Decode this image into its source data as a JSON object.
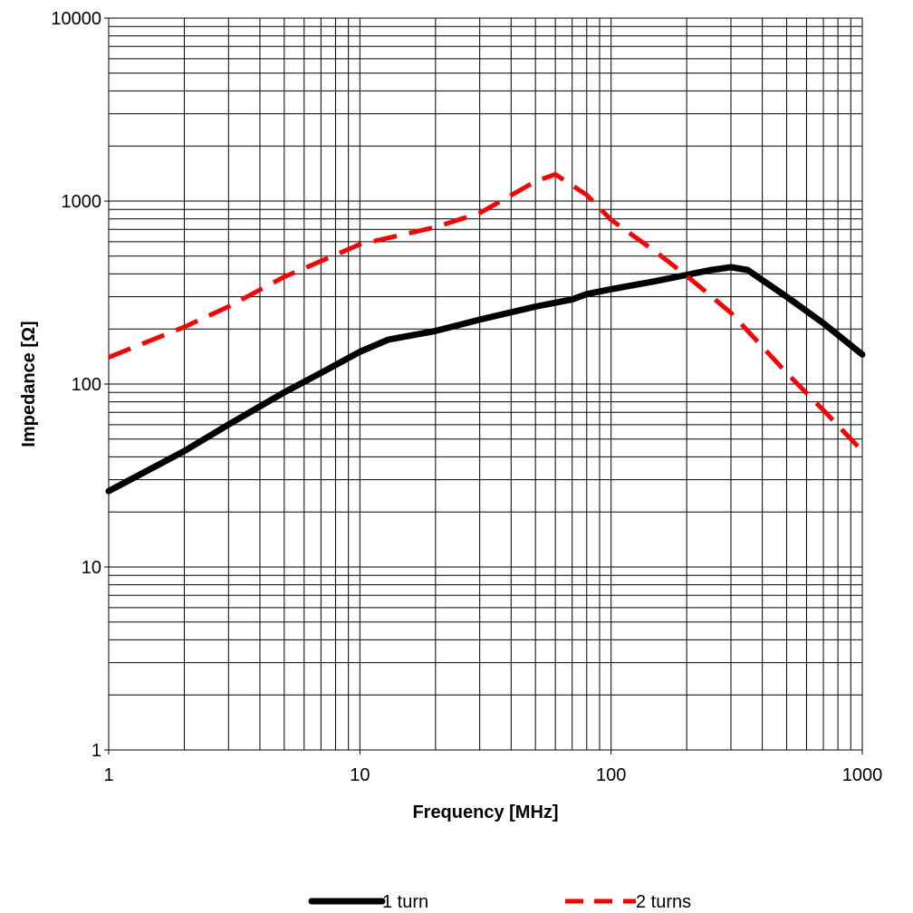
{
  "chart_data": {
    "type": "line",
    "title": "",
    "xlabel": "Frequency [MHz]",
    "ylabel": "Impedance [Ω]",
    "xscale": "log",
    "yscale": "log",
    "xlim": [
      1,
      1000
    ],
    "ylim": [
      1,
      10000
    ],
    "grid": true,
    "legend_position": "bottom",
    "x_tick_labels": [
      "1",
      "10",
      "100",
      "1000"
    ],
    "y_tick_labels": [
      "1",
      "10",
      "100",
      "1000",
      "10000"
    ],
    "series": [
      {
        "name": "1 turn",
        "color": "#000000",
        "style": "solid",
        "x": [
          1,
          2,
          3,
          5,
          7,
          10,
          13,
          20,
          30,
          50,
          70,
          80,
          100,
          150,
          200,
          250,
          300,
          350,
          400,
          500,
          700,
          1000
        ],
        "y": [
          26,
          43,
          60,
          90,
          115,
          150,
          175,
          195,
          225,
          265,
          290,
          310,
          330,
          365,
          395,
          420,
          435,
          420,
          370,
          300,
          215,
          145
        ]
      },
      {
        "name": "2 turns",
        "color": "#ff0000",
        "style": "dashed",
        "x": [
          1,
          2,
          3,
          5,
          10,
          20,
          30,
          50,
          60,
          80,
          100,
          150,
          200,
          300,
          500,
          700,
          1000
        ],
        "y": [
          140,
          205,
          265,
          385,
          580,
          720,
          860,
          1280,
          1400,
          1080,
          790,
          530,
          390,
          245,
          115,
          72,
          43
        ]
      }
    ]
  }
}
